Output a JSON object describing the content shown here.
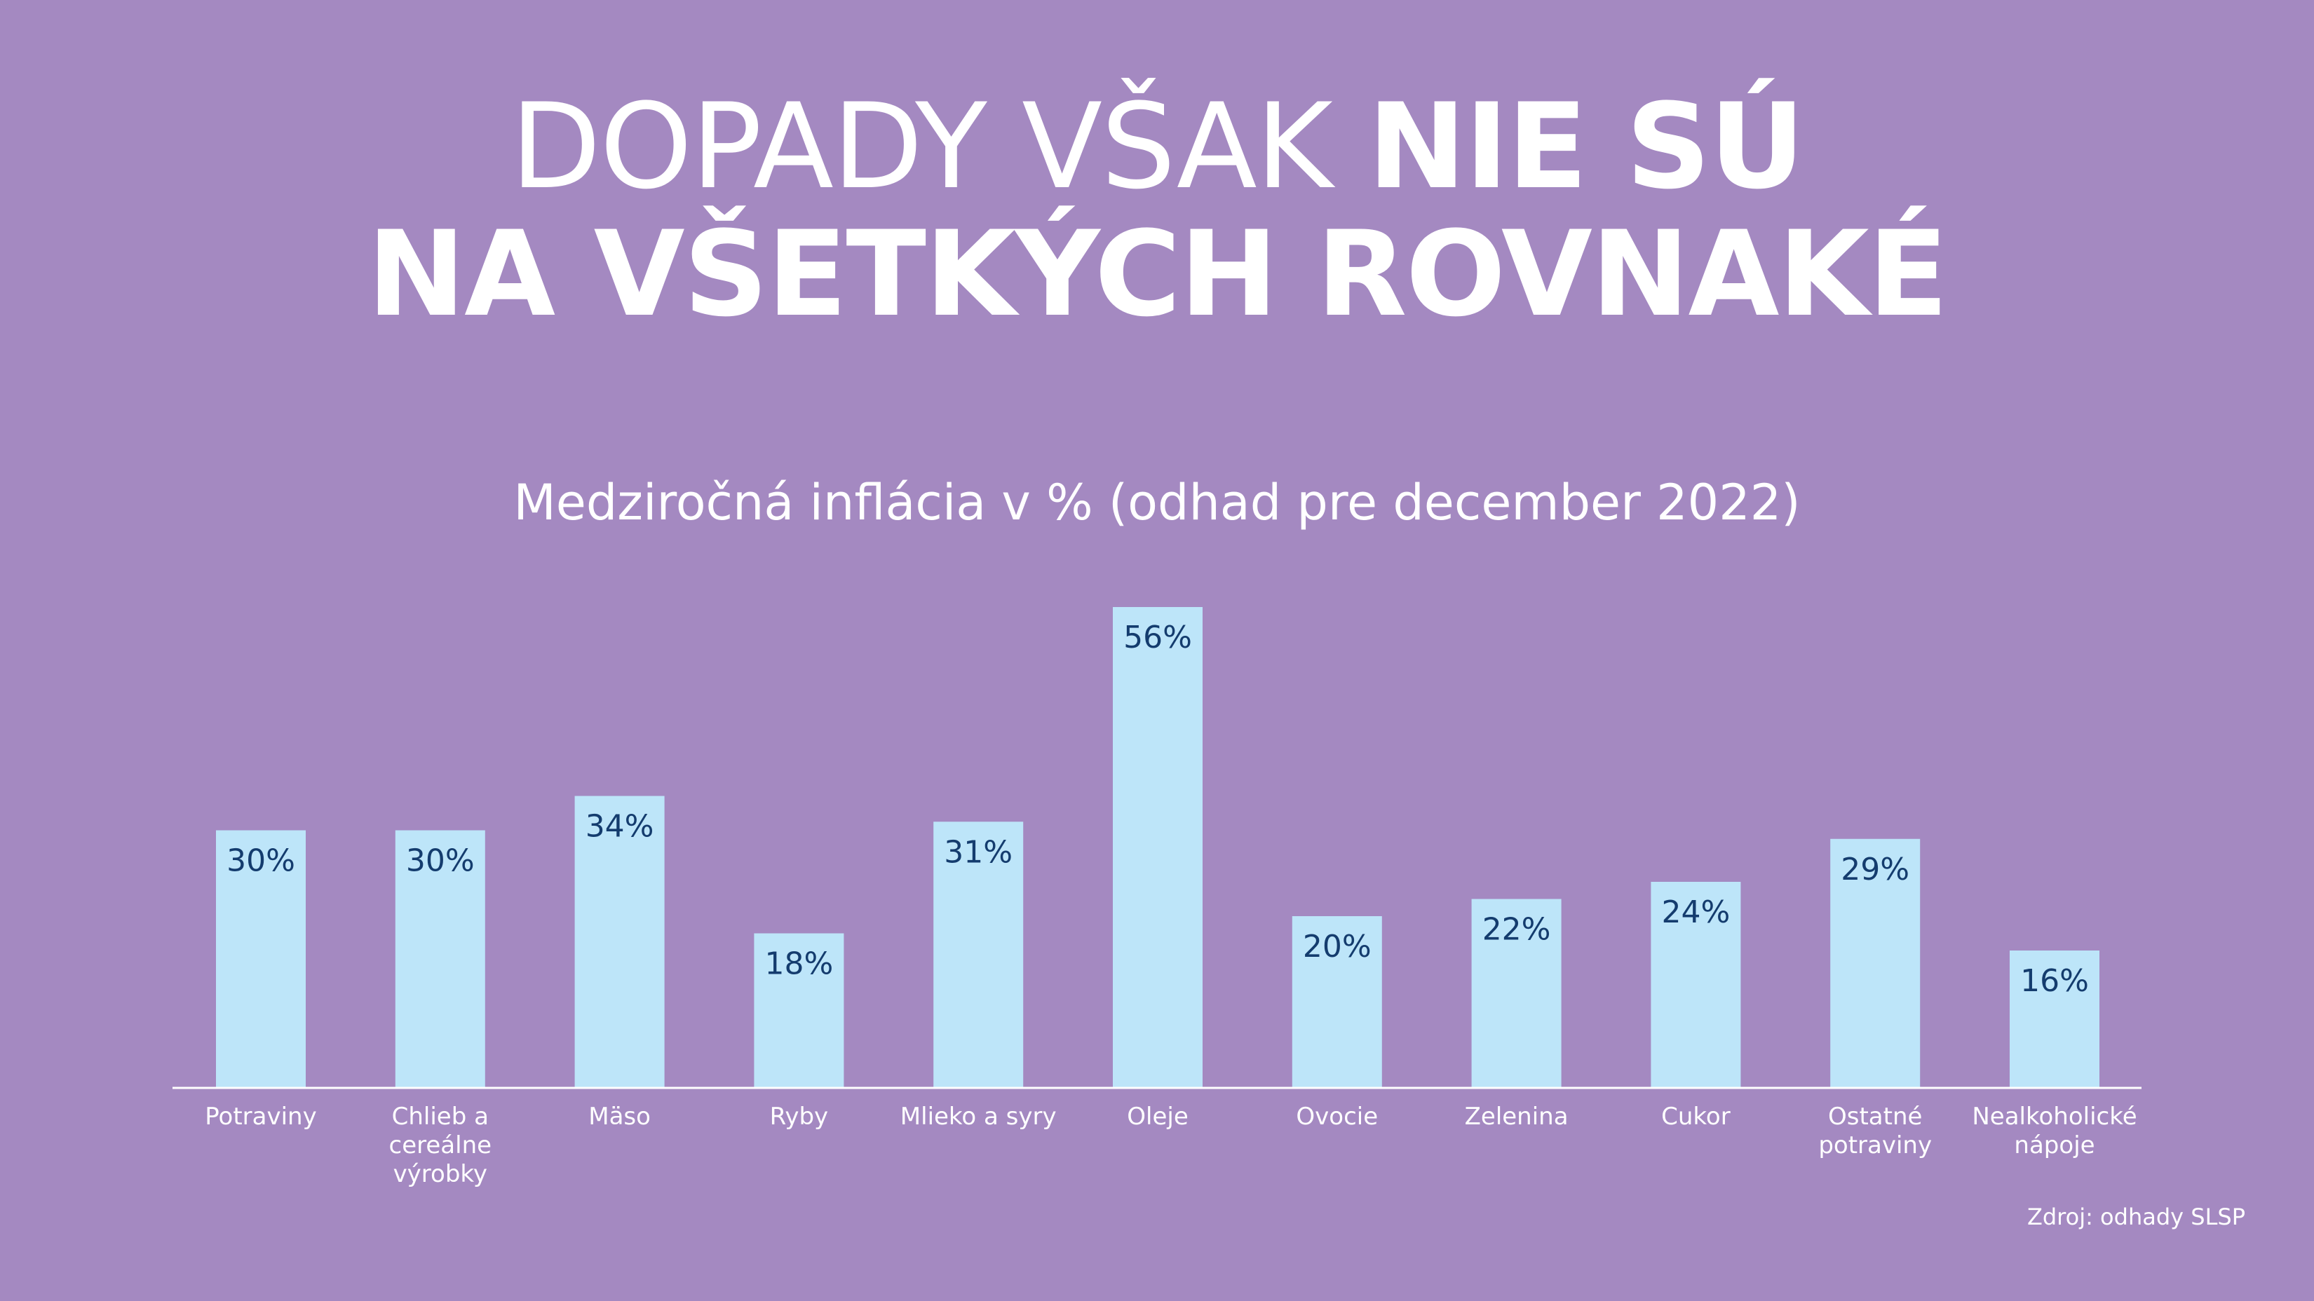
{
  "headline": {
    "part_light": "DOPADY VŠAK ",
    "part_bold_1": "NIE SÚ",
    "part_bold_2": "NA VŠETKÝCH ROVNAKÉ"
  },
  "colors": {
    "background": "#a489c1",
    "bar": "#bde5f9",
    "value_label": "#143c6e",
    "text": "#ffffff"
  },
  "chart_data": {
    "type": "bar",
    "title": "Medziročná inflácia v % (odhad pre december 2022)",
    "categories": [
      [
        "Potraviny"
      ],
      [
        "Chlieb a",
        "cereálne",
        "výrobky"
      ],
      [
        "Mäso"
      ],
      [
        "Ryby"
      ],
      [
        "Mlieko a syry"
      ],
      [
        "Oleje"
      ],
      [
        "Ovocie"
      ],
      [
        "Zelenina"
      ],
      [
        "Cukor"
      ],
      [
        "Ostatné",
        "potraviny"
      ],
      [
        "Nealkoholické",
        "nápoje"
      ]
    ],
    "values": [
      30,
      30,
      34,
      18,
      31,
      56,
      20,
      22,
      24,
      29,
      16
    ],
    "value_labels": [
      "30%",
      "30%",
      "34%",
      "18%",
      "31%",
      "56%",
      "20%",
      "22%",
      "24%",
      "29%",
      "16%"
    ],
    "unit": "%",
    "ylim": [
      0,
      56
    ],
    "grid": false,
    "legend": "none"
  },
  "source": "Zdroj: odhady SLSP"
}
